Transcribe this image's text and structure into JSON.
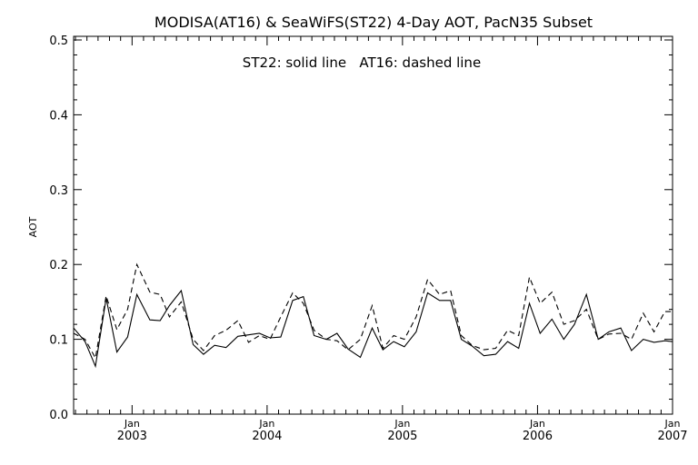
{
  "chart_data": {
    "type": "line",
    "title": "MODISA(AT16) & SeaWiFS(ST22) 4-Day AOT, PacN35 Subset",
    "annotation": "ST22: solid line   AT16: dashed line",
    "ylabel": "AOT",
    "xlabel": "",
    "ylim": [
      0.0,
      0.5
    ],
    "yticks": [
      0.0,
      0.1,
      0.2,
      0.3,
      0.4,
      0.5
    ],
    "ytick_labels": [
      "0.0",
      "0.1",
      "0.2",
      "0.3",
      "0.4",
      "0.5"
    ],
    "xlim": [
      "2002-07-27",
      "2007-01-01"
    ],
    "xticks": [
      {
        "date": "2003-01-01",
        "month": "Jan",
        "year": "2003"
      },
      {
        "date": "2004-01-01",
        "month": "Jan",
        "year": "2004"
      },
      {
        "date": "2005-01-01",
        "month": "Jan",
        "year": "2005"
      },
      {
        "date": "2006-01-01",
        "month": "Jan",
        "year": "2006"
      },
      {
        "date": "2007-01-01",
        "month": "Jan",
        "year": "2007"
      }
    ],
    "grid": false,
    "x": [
      "2002-07-27",
      "2002-08-27",
      "2002-09-24",
      "2002-10-23",
      "2002-11-21",
      "2002-12-20",
      "2003-01-14",
      "2003-02-18",
      "2003-03-18",
      "2003-04-12",
      "2003-05-14",
      "2003-06-15",
      "2003-07-13",
      "2003-08-12",
      "2003-09-12",
      "2003-10-14",
      "2003-11-12",
      "2003-12-11",
      "2004-01-09",
      "2004-02-07",
      "2004-03-10",
      "2004-04-08",
      "2004-05-07",
      "2004-06-09",
      "2004-07-08",
      "2004-08-07",
      "2004-09-09",
      "2004-10-11",
      "2004-11-09",
      "2004-12-08",
      "2005-01-06",
      "2005-02-07",
      "2005-03-10",
      "2005-04-11",
      "2005-05-11",
      "2005-06-09",
      "2005-07-08",
      "2005-08-09",
      "2005-09-10",
      "2005-10-12",
      "2005-11-11",
      "2005-12-10",
      "2006-01-08",
      "2006-02-09",
      "2006-03-13",
      "2006-04-11",
      "2006-05-13",
      "2006-06-14",
      "2006-07-13",
      "2006-08-14",
      "2006-09-12",
      "2006-10-14",
      "2006-11-12",
      "2006-12-11",
      "2006-12-31"
    ],
    "series": [
      {
        "name": "ST22",
        "style": "solid",
        "color": "#000000",
        "values": [
          0.115,
          0.097,
          0.064,
          0.155,
          0.083,
          0.103,
          0.16,
          0.126,
          0.125,
          0.145,
          0.165,
          0.093,
          0.08,
          0.092,
          0.089,
          0.104,
          0.106,
          0.108,
          0.102,
          0.103,
          0.152,
          0.157,
          0.105,
          0.1,
          0.108,
          0.087,
          0.076,
          0.115,
          0.086,
          0.097,
          0.09,
          0.11,
          0.162,
          0.152,
          0.152,
          0.1,
          0.091,
          0.078,
          0.08,
          0.097,
          0.088,
          0.148,
          0.108,
          0.127,
          0.1,
          0.12,
          0.16,
          0.1,
          0.11,
          0.115,
          0.085,
          0.1,
          0.096,
          0.098,
          0.097
        ]
      },
      {
        "name": "AT16",
        "style": "dashed",
        "color": "#000000",
        "values": [
          0.108,
          0.1,
          0.075,
          0.158,
          0.113,
          0.14,
          0.2,
          0.163,
          0.16,
          0.13,
          0.15,
          0.1,
          0.085,
          0.105,
          0.112,
          0.125,
          0.096,
          0.105,
          0.1,
          0.13,
          0.162,
          0.148,
          0.112,
          0.1,
          0.098,
          0.086,
          0.1,
          0.145,
          0.088,
          0.105,
          0.1,
          0.13,
          0.18,
          0.16,
          0.165,
          0.105,
          0.092,
          0.086,
          0.088,
          0.112,
          0.105,
          0.183,
          0.148,
          0.163,
          0.12,
          0.125,
          0.14,
          0.1,
          0.107,
          0.108,
          0.1,
          0.135,
          0.11,
          0.137,
          0.137
        ]
      }
    ]
  }
}
